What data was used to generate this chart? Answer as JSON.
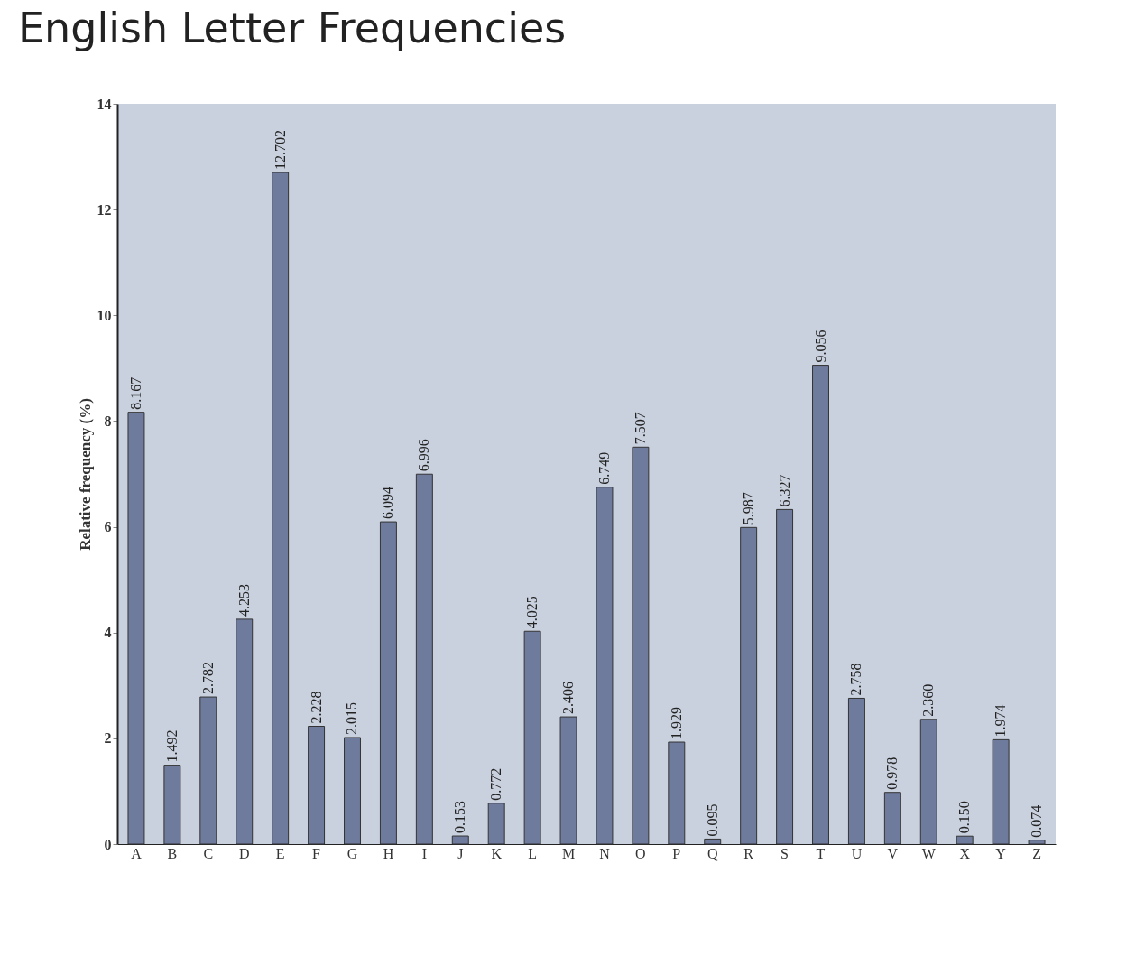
{
  "chart_data": {
    "type": "bar",
    "title": "English Letter Frequencies",
    "ylabel": "Relative frequency (%)",
    "categories": [
      "A",
      "B",
      "C",
      "D",
      "E",
      "F",
      "G",
      "H",
      "I",
      "J",
      "K",
      "L",
      "M",
      "N",
      "O",
      "P",
      "Q",
      "R",
      "S",
      "T",
      "U",
      "V",
      "W",
      "X",
      "Y",
      "Z"
    ],
    "values": [
      8.167,
      1.492,
      2.782,
      4.253,
      12.702,
      2.228,
      2.015,
      6.094,
      6.996,
      0.153,
      0.772,
      4.025,
      2.406,
      6.749,
      7.507,
      1.929,
      0.095,
      5.987,
      6.327,
      9.056,
      2.758,
      0.978,
      2.36,
      0.15,
      1.974,
      0.074
    ],
    "value_labels": [
      "8.167",
      "1.492",
      "2.782",
      "4.253",
      "12.702",
      "2.228",
      "2.015",
      "6.094",
      "6.996",
      "0.153",
      "0.772",
      "4.025",
      "2.406",
      "6.749",
      "7.507",
      "1.929",
      "0.095",
      "5.987",
      "6.327",
      "9.056",
      "2.758",
      "0.978",
      "2.360",
      "0.150",
      "1.974",
      "0.074"
    ],
    "color": "#6f7b9c",
    "ylim": [
      0,
      14
    ],
    "yticks": [
      0,
      2,
      4,
      6,
      8,
      10,
      12,
      14
    ],
    "grid": false
  }
}
